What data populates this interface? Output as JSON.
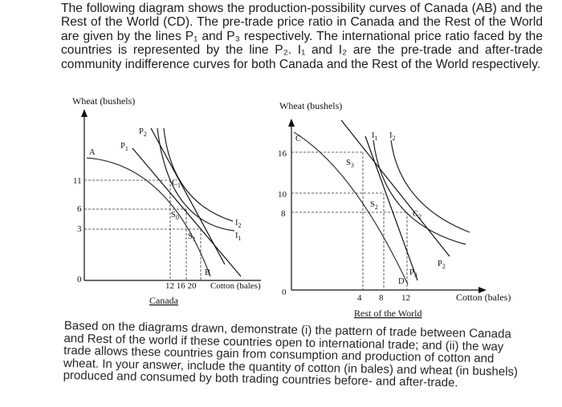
{
  "question": {
    "intro": "The following diagram shows the production-possibility curves of Canada (AB) and the Rest of the World (CD). The pre-trade price ratio in Canada and the Rest of the World are given by the lines P₁ and P₃ respectively. The international price ratio faced by the countries is represented by the line P₂. I₁ and I₂ are the pre-trade and after-trade community indifference curves for both Canada and the Rest of the World respectively.",
    "outro": "Based on the diagrams drawn, demonstrate (i) the pattern of trade between Canada and Rest of the world if these countries open to international trade; and (ii) the way trade allows these countries gain from consumption and production of cotton and wheat. In your answer, include the quantity of cotton (in bales) and wheat (in bushels) produced and consumed by both trading countries before- and after-trade."
  },
  "canada": {
    "y_axis_label": "Wheat (bushels)",
    "x_axis_label": "Cotton (bales)",
    "caption": "Canada",
    "origin": "0",
    "y_ticks": [
      "11",
      "6",
      "3"
    ],
    "x_ticks": "12 16 20",
    "points": {
      "A": "A",
      "B": "B",
      "C1": "C",
      "C1_sub": "1",
      "S0": "S",
      "S0_sub": "0",
      "S1": "S",
      "S1_sub": "1"
    },
    "lines": {
      "P1": "P",
      "P1_sub": "1",
      "P2": "P",
      "P2_sub": "2",
      "I1": "I",
      "I1_sub": "1",
      "I2": "I",
      "I2_sub": "2"
    }
  },
  "rest_of_world": {
    "y_axis_label": "Wheat (bushels)",
    "x_axis_label": "Cotton (bales)",
    "caption": "Rest of the World",
    "origin": "0",
    "y_ticks": [
      "16",
      "10",
      "8"
    ],
    "x_ticks": [
      "4",
      "8",
      "12"
    ],
    "points": {
      "C": "C",
      "D": "D",
      "S2": "S",
      "S2_sub": "2",
      "S3": "S",
      "S3_sub": "3",
      "C2": "C",
      "C2_sub": "2"
    },
    "lines": {
      "P2": "P",
      "P2_sub": "2",
      "P3": "P",
      "P3_sub": "3",
      "I1": "I",
      "I1_sub": "1",
      "I2": "I",
      "I2_sub": "2"
    }
  }
}
